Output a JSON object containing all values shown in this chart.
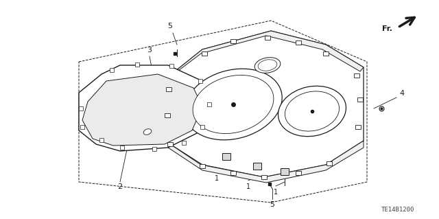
{
  "bg_color": "#ffffff",
  "line_color": "#1a1a1a",
  "part_label_code": "TE14B1200",
  "dashed_box": {
    "points_x": [
      0.115,
      0.395,
      0.88,
      0.88,
      0.605,
      0.115
    ],
    "points_y": [
      0.68,
      0.93,
      0.68,
      0.12,
      -0.12,
      0.12
    ]
  }
}
